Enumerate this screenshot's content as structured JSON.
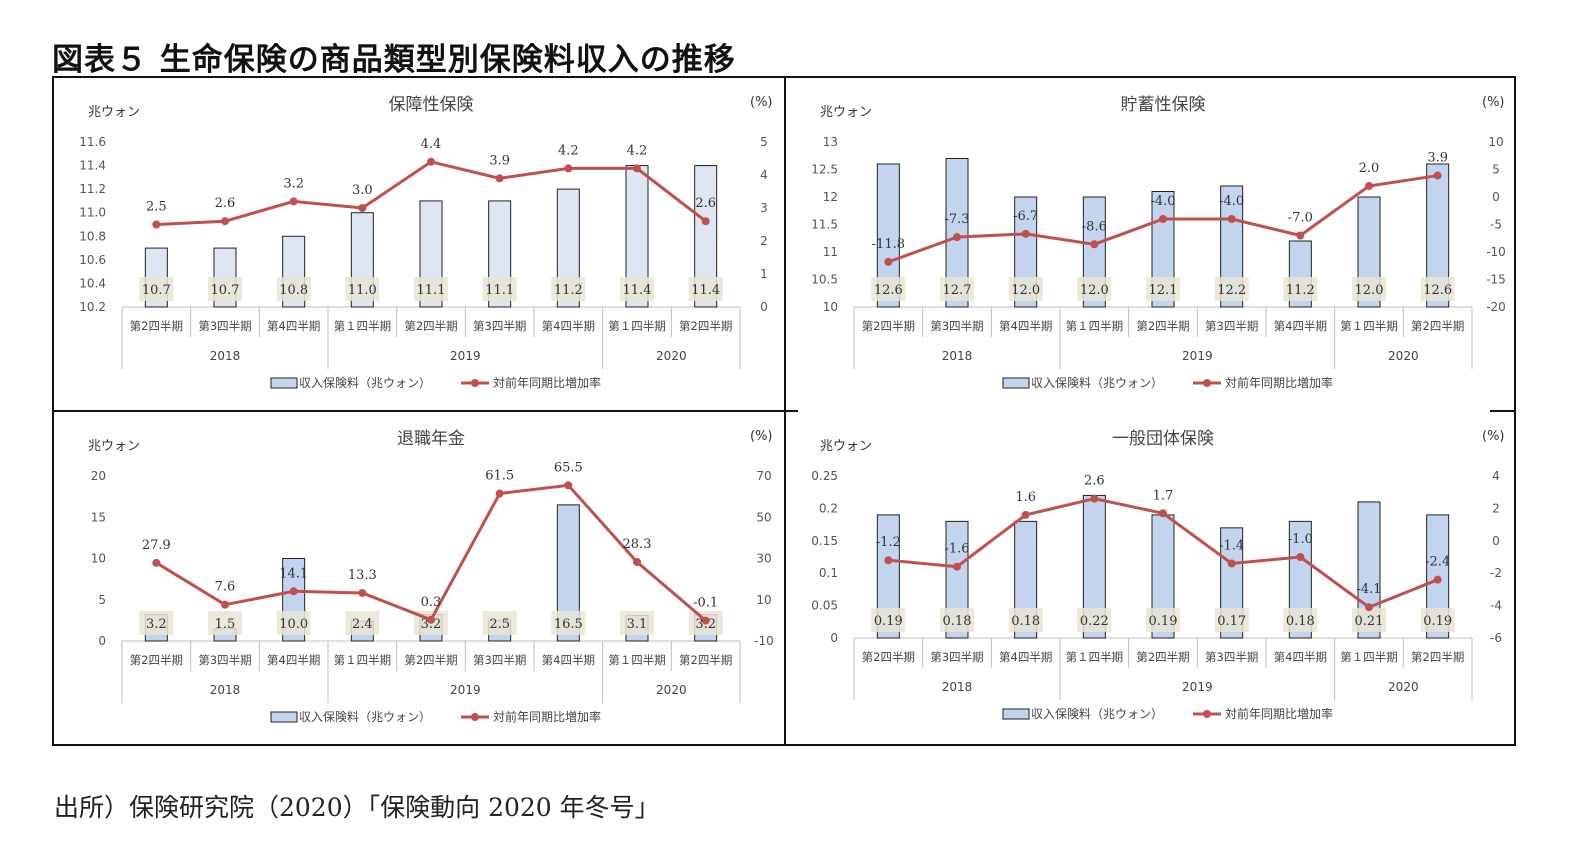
{
  "figure_title": "図表５ 生命保険の商品類型別保険料収入の推移",
  "source": "出所）保険研究院（2020）「保険動向 2020 年冬号」",
  "colors": {
    "bar_fill": "#dde6f2",
    "bar_fill_strong": "#c3d5ee",
    "bar_stroke": "#222222",
    "line": "#c0504d",
    "label_bg": "#e9e4d4",
    "axis": "#bfbfbf"
  },
  "chart_data": [
    {
      "type": "bar+line",
      "title": "保障性保険",
      "left_unit": "兆ウォン",
      "right_unit": "(%)",
      "categories": [
        "第2四半期",
        "第3四半期",
        "第4四半期",
        "第１四半期",
        "第2四半期",
        "第3四半期",
        "第4四半期",
        "第１四半期",
        "第2四半期"
      ],
      "years": [
        {
          "label": "2018",
          "span": 3
        },
        {
          "label": "2019",
          "span": 4
        },
        {
          "label": "2020",
          "span": 2
        }
      ],
      "bar_values": [
        10.7,
        10.7,
        10.8,
        11.0,
        11.1,
        11.1,
        11.2,
        11.4,
        11.4
      ],
      "bar_labels": [
        "10.7",
        "10.7",
        "10.8",
        "11.0",
        "11.1",
        "11.1",
        "11.2",
        "11.4",
        "11.4"
      ],
      "line_values": [
        2.5,
        2.6,
        3.2,
        3.0,
        4.4,
        3.9,
        4.2,
        4.2,
        2.6
      ],
      "line_labels": [
        "2.5",
        "2.6",
        "3.2",
        "3.0",
        "4.4",
        "3.9",
        "4.2",
        "4.2",
        "2.6"
      ],
      "left_ylim": [
        10.2,
        11.6
      ],
      "left_ticks": [
        "10.2",
        "10.4",
        "10.6",
        "10.8",
        "11.0",
        "11.2",
        "11.4",
        "11.6"
      ],
      "right_ylim": [
        0,
        5
      ],
      "right_ticks": [
        "0",
        "1",
        "2",
        "3",
        "4",
        "5"
      ],
      "legend": {
        "bar": "収入保険料（兆ウォン）",
        "line": "対前年同期比増加率"
      }
    },
    {
      "type": "bar+line",
      "title": "貯蓄性保険",
      "left_unit": "兆ウォン",
      "right_unit": "(%)",
      "categories": [
        "第2四半期",
        "第3四半期",
        "第4四半期",
        "第１四半期",
        "第2四半期",
        "第3四半期",
        "第4四半期",
        "第１四半期",
        "第2四半期"
      ],
      "years": [
        {
          "label": "2018",
          "span": 3
        },
        {
          "label": "2019",
          "span": 4
        },
        {
          "label": "2020",
          "span": 2
        }
      ],
      "bar_values": [
        12.6,
        12.7,
        12.0,
        12.0,
        12.1,
        12.2,
        11.2,
        12.0,
        12.6
      ],
      "bar_labels": [
        "12.6",
        "12.7",
        "12.0",
        "12.0",
        "12.1",
        "12.2",
        "11.2",
        "12.0",
        "12.6"
      ],
      "line_values": [
        -11.8,
        -7.3,
        -6.7,
        -8.6,
        -4.0,
        -4.0,
        -7.0,
        2.0,
        3.9
      ],
      "line_labels": [
        "-11.8",
        "-7.3",
        "-6.7",
        "-8.6",
        "-4.0",
        "-4.0",
        "-7.0",
        "2.0",
        "3.9"
      ],
      "left_ylim": [
        10,
        13
      ],
      "left_ticks": [
        "10",
        "10.5",
        "11",
        "11.5",
        "12",
        "12.5",
        "13"
      ],
      "right_ylim": [
        -20,
        10
      ],
      "right_ticks": [
        "-20",
        "-15",
        "-10",
        "-5",
        "0",
        "5",
        "10"
      ],
      "legend": {
        "bar": "収入保険料（兆ウォン）",
        "line": "対前年同期比増加率"
      }
    },
    {
      "type": "bar+line",
      "title": "退職年金",
      "left_unit": "兆ウォン",
      "right_unit": "(%)",
      "categories": [
        "第2四半期",
        "第3四半期",
        "第4四半期",
        "第１四半期",
        "第2四半期",
        "第3四半期",
        "第4四半期",
        "第１四半期",
        "第2四半期"
      ],
      "years": [
        {
          "label": "2018",
          "span": 3
        },
        {
          "label": "2019",
          "span": 4
        },
        {
          "label": "2020",
          "span": 2
        }
      ],
      "bar_values": [
        3.2,
        1.5,
        10.0,
        2.4,
        3.2,
        2.5,
        16.5,
        3.1,
        3.2
      ],
      "bar_labels": [
        "3.2",
        "1.5",
        "10.0",
        "2.4",
        "3.2",
        "2.5",
        "16.5",
        "3.1",
        "3.2"
      ],
      "line_values": [
        27.9,
        7.6,
        14.1,
        13.3,
        0.3,
        61.5,
        65.5,
        28.3,
        -0.1
      ],
      "line_labels": [
        "27.9",
        "7.6",
        "14.1",
        "13.3",
        "0.3",
        "61.5",
        "65.5",
        "28.3",
        "-0.1"
      ],
      "left_ylim": [
        0,
        20
      ],
      "left_ticks": [
        "0",
        "5",
        "10",
        "15",
        "20"
      ],
      "right_ylim": [
        -10,
        70
      ],
      "right_ticks": [
        "-10",
        "10",
        "30",
        "50",
        "70"
      ],
      "legend": {
        "bar": "収入保険料（兆ウォン）",
        "line": "対前年同期比増加率"
      }
    },
    {
      "type": "bar+line",
      "title": "一般団体保険",
      "left_unit": "兆ウォン",
      "right_unit": "(%)",
      "categories": [
        "第2四半期",
        "第3四半期",
        "第4四半期",
        "第１四半期",
        "第2四半期",
        "第3四半期",
        "第4四半期",
        "第１四半期",
        "第2四半期"
      ],
      "years": [
        {
          "label": "2018",
          "span": 3
        },
        {
          "label": "2019",
          "span": 4
        },
        {
          "label": "2020",
          "span": 2
        }
      ],
      "bar_values": [
        0.19,
        0.18,
        0.18,
        0.22,
        0.19,
        0.17,
        0.18,
        0.21,
        0.19
      ],
      "bar_labels": [
        "0.19",
        "0.18",
        "0.18",
        "0.22",
        "0.19",
        "0.17",
        "0.18",
        "0.21",
        "0.19"
      ],
      "line_values": [
        -1.2,
        -1.6,
        1.6,
        2.6,
        1.7,
        -1.4,
        -1.0,
        -4.1,
        -2.4
      ],
      "line_labels": [
        "-1.2",
        "-1.6",
        "1.6",
        "2.6",
        "1.7",
        "-1.4",
        "-1.0",
        "-4.1",
        "-2.4"
      ],
      "left_ylim": [
        0,
        0.25
      ],
      "left_ticks": [
        "0",
        "0.05",
        "0.1",
        "0.15",
        "0.2",
        "0.25"
      ],
      "right_ylim": [
        -6,
        4
      ],
      "right_ticks": [
        "-6",
        "-4",
        "-2",
        "0",
        "2",
        "4"
      ],
      "legend": {
        "bar": "収入保険料（兆ウォン）",
        "line": "対前年同期比増加率"
      }
    }
  ]
}
